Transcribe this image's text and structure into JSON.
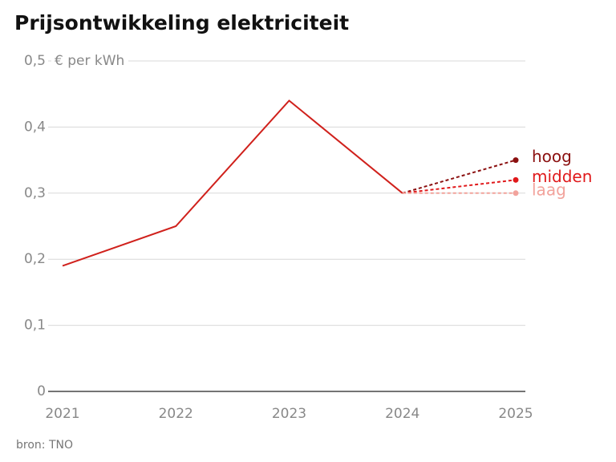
{
  "chart_data": {
    "type": "line",
    "title": "Prijsontwikkeling elektriciteit",
    "y_label": "€ per kWh",
    "source": "bron: TNO",
    "categories": [
      "2021",
      "2022",
      "2023",
      "2024",
      "2025"
    ],
    "series": [
      {
        "color": "#d0211c",
        "dashed": false,
        "values": [
          0.19,
          0.25,
          0.44,
          0.3,
          null
        ]
      },
      {
        "name": "hoog",
        "color": "#8b1010",
        "dashed": true,
        "values": [
          null,
          null,
          null,
          0.3,
          0.35
        ]
      },
      {
        "name": "midden",
        "color": "#e0191b",
        "dashed": true,
        "values": [
          null,
          null,
          null,
          0.3,
          0.32
        ]
      },
      {
        "name": "laag",
        "color": "#f2a39c",
        "dashed": true,
        "values": [
          null,
          null,
          null,
          0.3,
          0.3
        ]
      }
    ],
    "ylim": [
      0,
      0.5
    ],
    "yticks": [
      0,
      {
        "value": 0.1,
        "label": "0,1"
      },
      {
        "value": 0.2,
        "label": "0,2"
      },
      {
        "value": 0.3,
        "label": "0,3"
      },
      {
        "value": 0.4,
        "label": "0,4"
      },
      {
        "value": 0.5,
        "label": "0,5"
      }
    ],
    "grid": true
  }
}
